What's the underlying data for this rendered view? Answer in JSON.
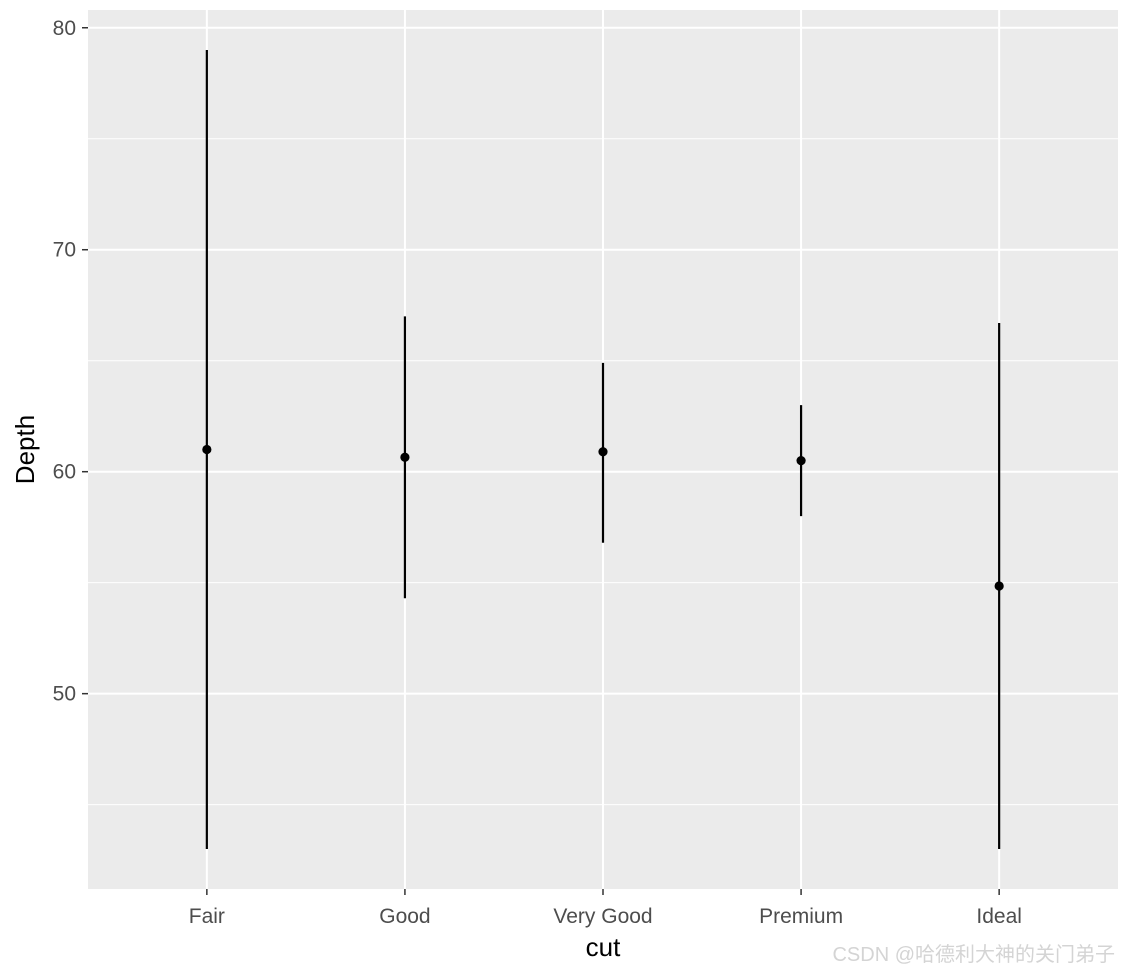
{
  "chart_data": {
    "type": "pointrange",
    "xlabel": "cut",
    "ylabel": "Depth",
    "categories": [
      "Fair",
      "Good",
      "Very Good",
      "Premium",
      "Ideal"
    ],
    "points": [
      61.0,
      60.65,
      60.9,
      60.5,
      54.85
    ],
    "ymin": [
      43.0,
      54.3,
      56.8,
      58.0,
      43.0
    ],
    "ymax": [
      79.0,
      67.0,
      64.9,
      63.0,
      66.7
    ],
    "ylim": [
      41.2,
      80.8
    ],
    "yticks": [
      50,
      60,
      70,
      80
    ],
    "grid": true,
    "legend": "none",
    "colors": {
      "panel": "#ebebeb",
      "grid": "#ffffff",
      "mark": "#000000",
      "tick_text": "#4d4d4d"
    }
  },
  "watermark": "CSDN @哈德利大神的关门弟子"
}
